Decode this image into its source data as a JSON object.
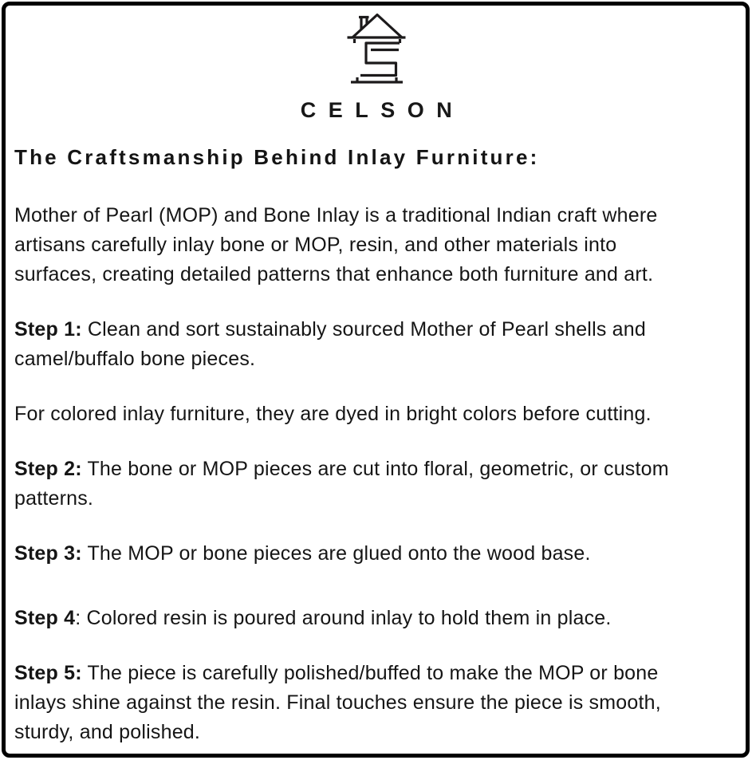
{
  "page": {
    "background": "#ffffff",
    "frame_color": "#000000",
    "text_color": "#111111"
  },
  "brand": {
    "name": "CELSON",
    "logo_icon": "house-with-chimney-and-s-monogram"
  },
  "heading": {
    "text": "The Craftsmanship Behind Inlay Furniture:"
  },
  "paragraphs": [
    {
      "id": "intro",
      "lines": [
        [
          {
            "text": "Mother of Pearl (MOP) and Bone Inlay is a traditional Indian craft where"
          }
        ],
        [
          {
            "text": "artisans carefully inlay bone or MOP, resin, and other materials into"
          }
        ],
        [
          {
            "text": "surfaces, creating detailed patterns that enhance both furniture and art."
          }
        ]
      ]
    },
    {
      "id": "step-1",
      "lines": [
        [
          {
            "text": "Step 1:",
            "bold": true
          },
          {
            "text": " Clean and sort sustainably sourced Mother of Pearl shells and"
          }
        ],
        [
          {
            "text": "camel/buffalo bone pieces."
          }
        ]
      ]
    },
    {
      "id": "dye-note",
      "lines": [
        [
          {
            "text": "For colored inlay furniture, they are dyed in bright colors before cutting."
          }
        ]
      ]
    },
    {
      "id": "step-2",
      "lines": [
        [
          {
            "text": "Step 2:",
            "bold": true
          },
          {
            "text": " The bone or MOP pieces are cut into floral, geometric, or custom"
          }
        ],
        [
          {
            "text": "patterns."
          }
        ]
      ]
    },
    {
      "id": "step-3",
      "lines": [
        [
          {
            "text": "Step 3:",
            "bold": true
          },
          {
            "text": " The MOP or bone pieces are glued onto the wood base."
          }
        ]
      ]
    },
    {
      "id": "step-4",
      "lines": [
        [
          {
            "text": "Step 4",
            "bold": true
          },
          {
            "text": ": Colored resin is poured around inlay to hold them in place."
          }
        ]
      ]
    },
    {
      "id": "step-5",
      "lines": [
        [
          {
            "text": "Step 5:",
            "bold": true
          },
          {
            "text": " The piece is carefully polished/buffed to make the MOP or bone"
          }
        ],
        [
          {
            "text": "inlays shine against the resin. Final touches ensure the piece is smooth,"
          }
        ],
        [
          {
            "text": "sturdy, and polished."
          }
        ]
      ]
    }
  ]
}
